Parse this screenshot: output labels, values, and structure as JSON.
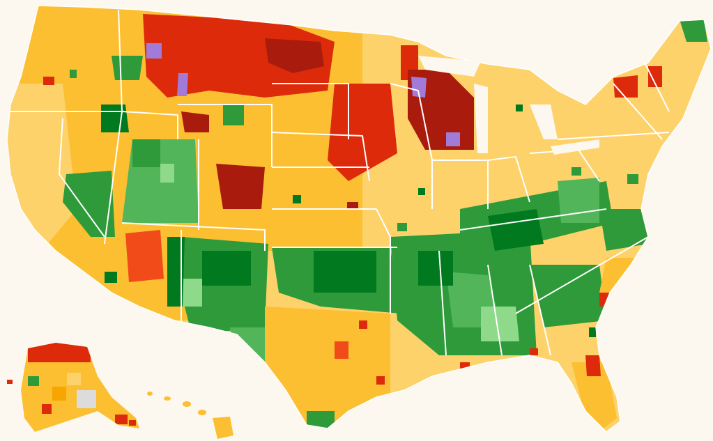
{
  "map": {
    "background": "#fcf8f0",
    "border_color": "#ffffff",
    "palette": {
      "dark_red": "#a91b0d",
      "red": "#dc2a0b",
      "orange_red": "#f24b1a",
      "orange": "#f7a600",
      "amber": "#fbbf31",
      "light_amber": "#fdd26a",
      "dark_green": "#00791f",
      "green": "#2f9a3a",
      "mid_green": "#52b55a",
      "light_green": "#8fd98a",
      "purple": "#a27bd8",
      "gray": "#dcdcdc"
    }
  }
}
